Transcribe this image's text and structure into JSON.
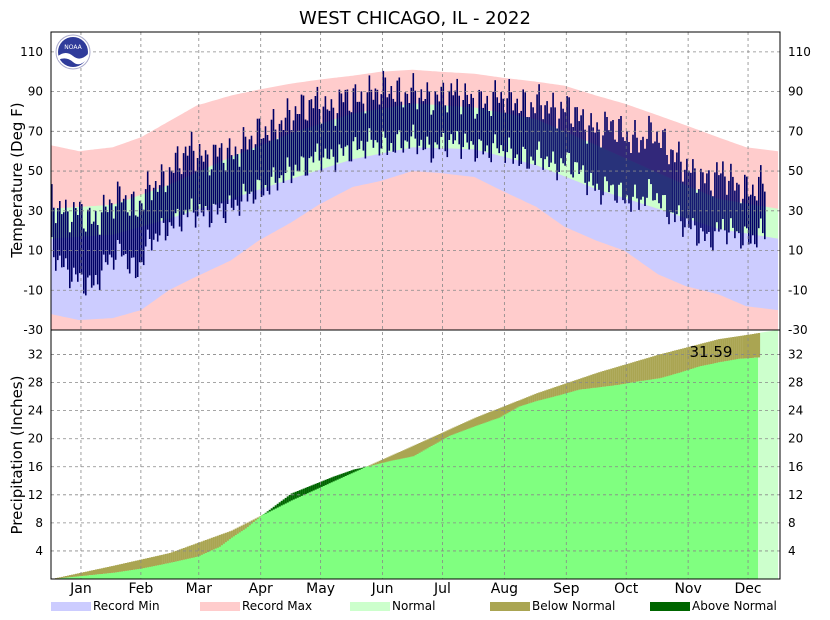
{
  "title": "WEST CHICAGO, IL - 2022",
  "logo_text": "NOAA",
  "colors": {
    "record_min": "#ccccff",
    "record_max": "#ffcccc",
    "normal": "#ccffcc",
    "actual": "#000066",
    "below_normal": "#aaa552",
    "above_normal": "#006600",
    "precip_fill": "#80ff80",
    "grid": "#888888"
  },
  "chart_data": [
    {
      "type": "area",
      "name": "temperature",
      "ylabel": "Temperature (Deg F)",
      "ylim": [
        -30,
        120
      ],
      "yticks": [
        -30,
        -10,
        10,
        30,
        50,
        70,
        90,
        110
      ],
      "grid": true,
      "months": [
        "Jan",
        "Feb",
        "Mar",
        "Apr",
        "May",
        "Jun",
        "Jul",
        "Aug",
        "Sep",
        "Oct",
        "Nov",
        "Dec"
      ],
      "series": [
        {
          "name": "Record Min",
          "x_day": [
            1,
            15,
            32,
            46,
            60,
            74,
            91,
            105,
            121,
            135,
            152,
            166,
            182,
            196,
            213,
            227,
            244,
            258,
            274,
            288,
            305,
            319,
            335,
            349,
            365
          ],
          "values": [
            -22,
            -25,
            -24,
            -20,
            -10,
            -3,
            5,
            15,
            24,
            33,
            42,
            45,
            50,
            49,
            47,
            40,
            32,
            22,
            15,
            10,
            -2,
            -8,
            -12,
            -18,
            -20
          ]
        },
        {
          "name": "Record Max",
          "x_day": [
            1,
            15,
            32,
            46,
            60,
            74,
            91,
            105,
            121,
            135,
            152,
            166,
            182,
            196,
            213,
            227,
            244,
            258,
            274,
            288,
            305,
            319,
            335,
            349,
            365
          ],
          "values": [
            63,
            60,
            62,
            67,
            75,
            83,
            88,
            91,
            94,
            96,
            98,
            100,
            101,
            100,
            99,
            97,
            95,
            93,
            88,
            84,
            78,
            73,
            67,
            62,
            60
          ]
        },
        {
          "name": "Normal",
          "high": {
            "x_day": [
              1,
              32,
              60,
              91,
              121,
              152,
              182,
              213,
              244,
              274,
              305,
              335,
              365
            ],
            "values": [
              31,
              33,
              43,
              57,
              69,
              79,
              84,
              82,
              76,
              63,
              49,
              36,
              31
            ]
          },
          "low": {
            "x_day": [
              1,
              32,
              60,
              91,
              121,
              152,
              182,
              213,
              244,
              274,
              305,
              335,
              365
            ],
            "values": [
              16,
              18,
              26,
              36,
              46,
              56,
              62,
              61,
              53,
              41,
              31,
              21,
              16
            ]
          }
        },
        {
          "name": "Actual",
          "x_day": [
            1,
            8,
            15,
            22,
            29,
            36,
            43,
            50,
            57,
            64,
            71,
            78,
            85,
            92,
            99,
            106,
            113,
            120,
            127,
            134,
            141,
            148,
            155,
            162,
            169,
            176,
            183,
            190,
            197,
            204,
            211,
            218,
            225,
            232,
            239,
            246,
            253,
            260,
            267,
            274,
            281,
            288,
            295,
            302,
            309,
            316,
            323,
            330,
            337,
            344,
            351,
            358
          ],
          "high": [
            35,
            28,
            30,
            24,
            32,
            38,
            30,
            42,
            45,
            55,
            62,
            55,
            60,
            58,
            65,
            70,
            72,
            78,
            82,
            85,
            80,
            88,
            86,
            90,
            92,
            88,
            90,
            86,
            88,
            90,
            85,
            84,
            88,
            86,
            82,
            85,
            80,
            82,
            75,
            70,
            74,
            68,
            65,
            70,
            62,
            55,
            48,
            45,
            50,
            42,
            40,
            45
          ],
          "low": [
            10,
            0,
            -5,
            -8,
            5,
            10,
            -2,
            15,
            20,
            25,
            30,
            28,
            30,
            32,
            38,
            40,
            45,
            50,
            52,
            58,
            56,
            60,
            62,
            65,
            62,
            64,
            66,
            60,
            64,
            65,
            62,
            60,
            62,
            58,
            55,
            58,
            52,
            55,
            48,
            40,
            42,
            36,
            35,
            40,
            30,
            25,
            20,
            15,
            22,
            18,
            15,
            20
          ]
        }
      ]
    },
    {
      "type": "area",
      "name": "precipitation",
      "ylabel": "Precipitation (Inches)",
      "ylim": [
        0,
        35.5
      ],
      "yticks": [
        4,
        8,
        12,
        16,
        20,
        24,
        28,
        32
      ],
      "grid": true,
      "annotation": "31.59",
      "months": [
        "Jan",
        "Feb",
        "Mar",
        "Apr",
        "May",
        "Jun",
        "Jul",
        "Aug",
        "Sep",
        "Oct",
        "Nov",
        "Dec"
      ],
      "series": [
        {
          "name": "Normal",
          "x_day": [
            1,
            32,
            60,
            91,
            121,
            152,
            182,
            213,
            244,
            274,
            305,
            335,
            365
          ],
          "values": [
            0,
            1.9,
            3.7,
            6.9,
            11.2,
            15.2,
            19.0,
            23.0,
            26.5,
            29.4,
            32.0,
            34.2,
            35.5
          ]
        },
        {
          "name": "Observed",
          "x_day": [
            1,
            15,
            32,
            46,
            60,
            74,
            85,
            91,
            98,
            105,
            112,
            121,
            128,
            135,
            142,
            152,
            160,
            170,
            182,
            190,
            200,
            213,
            225,
            235,
            244,
            255,
            265,
            274,
            285,
            295,
            305,
            315,
            325,
            335,
            345,
            355
          ],
          "values": [
            0,
            0.4,
            0.9,
            1.5,
            2.3,
            3.2,
            4.6,
            5.9,
            7.2,
            8.8,
            10.3,
            12.2,
            13.0,
            13.8,
            14.6,
            15.6,
            16.1,
            16.8,
            17.5,
            18.8,
            20.4,
            21.8,
            23.0,
            24.6,
            25.4,
            26.2,
            27.0,
            27.3,
            27.7,
            28.2,
            28.6,
            29.4,
            30.3,
            30.9,
            31.4,
            31.59
          ]
        }
      ]
    }
  ],
  "legend": [
    {
      "label": "Record Min",
      "color": "#ccccff"
    },
    {
      "label": "Record Max",
      "color": "#ffcccc"
    },
    {
      "label": "Normal",
      "color": "#ccffcc"
    },
    {
      "label": "Below Normal",
      "color": "#aaa552"
    },
    {
      "label": "Above Normal",
      "color": "#006600"
    }
  ]
}
